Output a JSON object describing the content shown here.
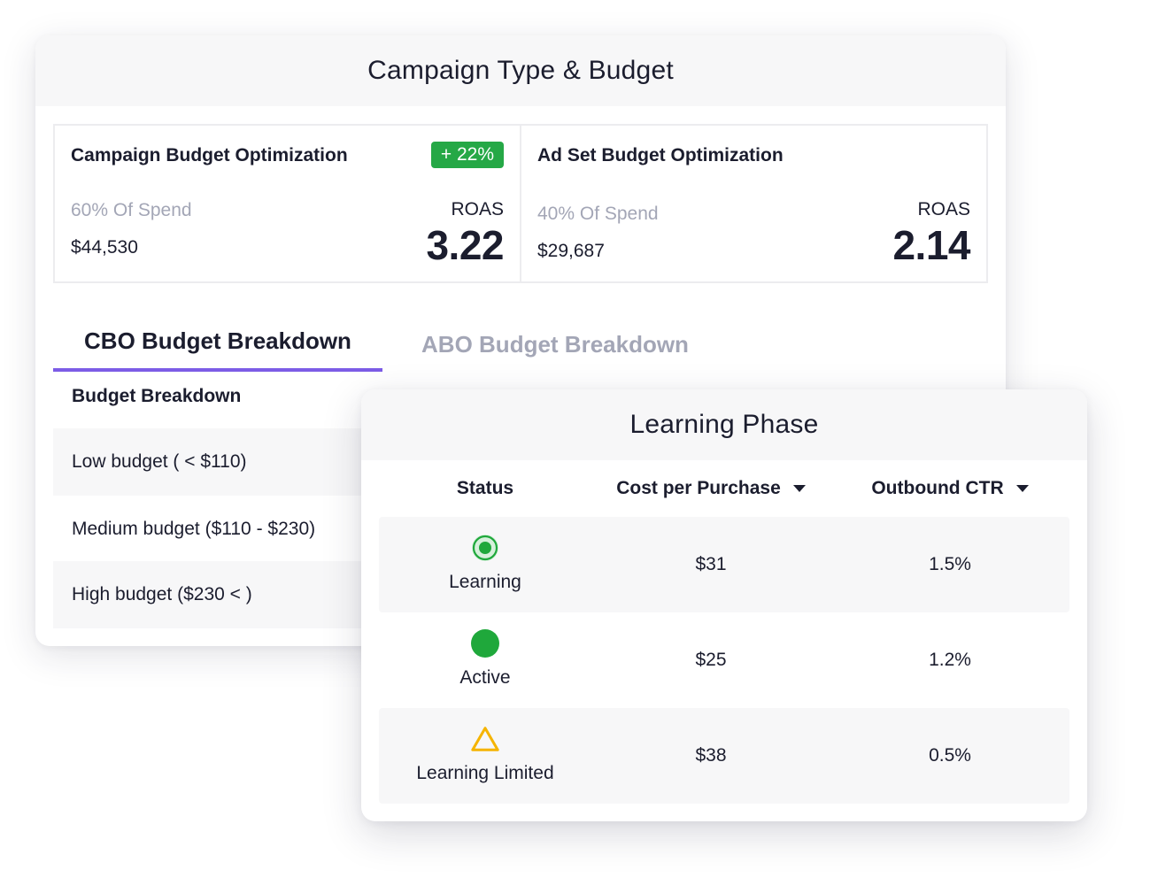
{
  "campaign_card": {
    "title": "Campaign Type & Budget",
    "cbo": {
      "title": "Campaign Budget Optimization",
      "badge": "+ 22%",
      "spend_label": "60% Of Spend",
      "amount": "$44,530",
      "roas_label": "ROAS",
      "roas_value": "3.22"
    },
    "abo": {
      "title": "Ad Set Budget Optimization",
      "spend_label": "40% Of Spend",
      "amount": "$29,687",
      "roas_label": "ROAS",
      "roas_value": "2.14"
    },
    "tabs": [
      {
        "label": "CBO Budget Breakdown",
        "active": true
      },
      {
        "label": "ABO Budget Breakdown",
        "active": false
      }
    ],
    "breakdown_heading": "Budget Breakdown",
    "breakdown_rows": [
      {
        "label": "Low budget ( < $110)"
      },
      {
        "label": "Medium budget ($110 - $230)"
      },
      {
        "label": "High budget ($230 < )"
      }
    ]
  },
  "learning_card": {
    "title": "Learning Phase",
    "columns": {
      "status": "Status",
      "cost_per_purchase": "Cost per Purchase",
      "outbound_ctr": "Outbound CTR"
    },
    "rows": [
      {
        "status": "Learning",
        "icon": "radio-dot-icon",
        "cost": "$31",
        "ctr": "1.5%"
      },
      {
        "status": "Active",
        "icon": "green-dot-icon",
        "cost": "$25",
        "ctr": "1.2%"
      },
      {
        "status": "Learning Limited",
        "icon": "warning-triangle-icon",
        "cost": "$38",
        "ctr": "0.5%"
      }
    ]
  },
  "colors": {
    "badge_green": "#25a846",
    "status_green": "#1fa83b",
    "warning_yellow": "#f5b400",
    "tab_accent": "#7c5ce6",
    "muted_text": "#a3a6b6"
  }
}
